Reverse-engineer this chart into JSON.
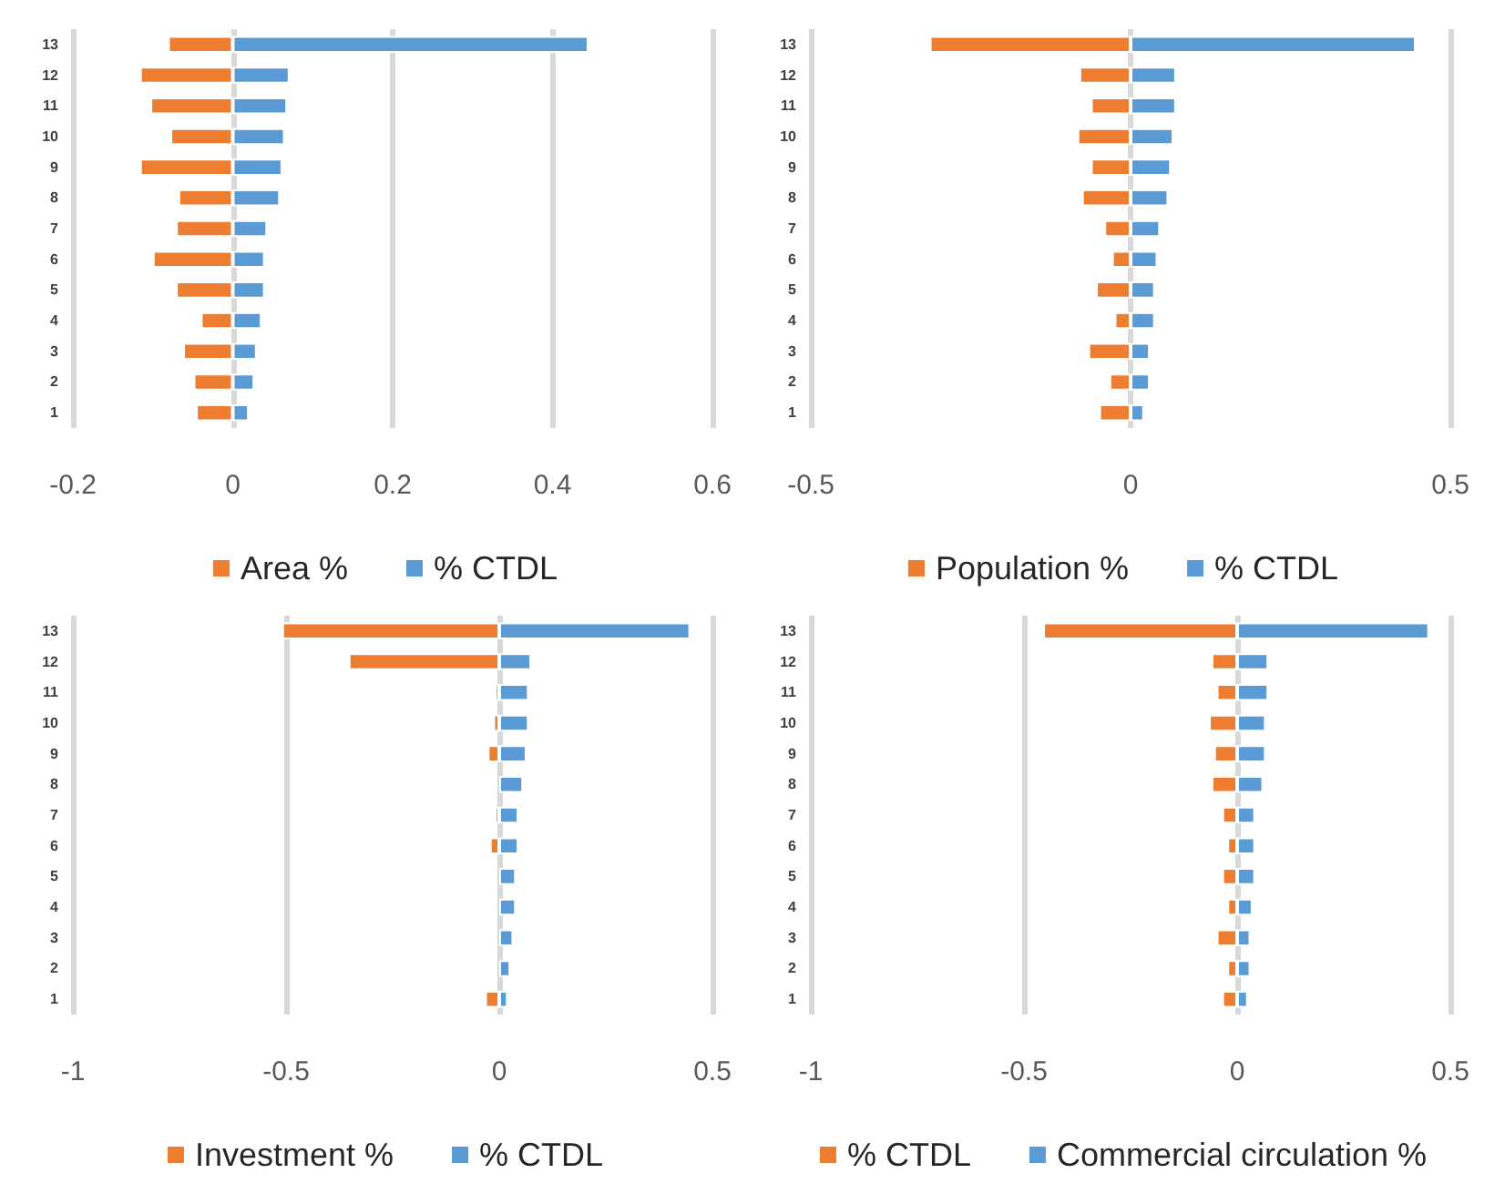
{
  "chart_data": [
    {
      "type": "bar",
      "orientation": "horizontal",
      "categories": [
        "13",
        "12",
        "11",
        "10",
        "9",
        "8",
        "7",
        "6",
        "5",
        "4",
        "3",
        "2",
        "1"
      ],
      "series": [
        {
          "name": "Area %",
          "color": "#ed7d31",
          "values": [
            -0.081,
            -0.116,
            -0.103,
            -0.078,
            -0.116,
            -0.068,
            -0.071,
            -0.1,
            -0.071,
            -0.04,
            -0.062,
            -0.049,
            -0.046
          ]
        },
        {
          "name": "% CTDL",
          "color": "#5b9bd5",
          "values": [
            0.445,
            0.071,
            0.068,
            0.065,
            0.062,
            0.059,
            0.043,
            0.04,
            0.04,
            0.036,
            0.03,
            0.027,
            0.02
          ]
        }
      ],
      "xlim": [
        -0.2,
        0.6
      ],
      "xticks": [
        -0.2,
        0,
        0.2,
        0.4,
        0.6
      ],
      "stacked": true,
      "grid": "x",
      "legend": "bottom"
    },
    {
      "type": "bar",
      "orientation": "horizontal",
      "categories": [
        "13",
        "12",
        "11",
        "10",
        "9",
        "8",
        "7",
        "6",
        "5",
        "4",
        "3",
        "2",
        "1"
      ],
      "series": [
        {
          "name": "Population %",
          "color": "#ed7d31",
          "values": [
            -0.314,
            -0.08,
            -0.062,
            -0.083,
            -0.062,
            -0.076,
            -0.041,
            -0.029,
            -0.054,
            -0.025,
            -0.066,
            -0.033,
            -0.049
          ]
        },
        {
          "name": "% CTDL",
          "color": "#5b9bd5",
          "values": [
            0.446,
            0.071,
            0.071,
            0.067,
            0.063,
            0.059,
            0.046,
            0.042,
            0.038,
            0.038,
            0.03,
            0.03,
            0.021
          ]
        }
      ],
      "xlim": [
        -0.5,
        0.5
      ],
      "xticks": [
        -0.5,
        0,
        0.5
      ],
      "stacked": true,
      "grid": "x",
      "legend": "bottom"
    },
    {
      "type": "bar",
      "orientation": "horizontal",
      "categories": [
        "13",
        "12",
        "11",
        "10",
        "9",
        "8",
        "7",
        "6",
        "5",
        "4",
        "3",
        "2",
        "1"
      ],
      "series": [
        {
          "name": "Investment %",
          "color": "#ed7d31",
          "values": [
            -0.509,
            -0.353,
            -0.01,
            -0.014,
            -0.027,
            null,
            -0.01,
            -0.022,
            null,
            null,
            null,
            null,
            -0.033
          ]
        },
        {
          "name": "% CTDL",
          "color": "#5b9bd5",
          "values": [
            0.448,
            0.075,
            0.069,
            0.069,
            0.064,
            0.056,
            0.045,
            0.045,
            0.039,
            0.039,
            0.033,
            0.026,
            0.02
          ]
        }
      ],
      "xlim": [
        -1,
        0.5
      ],
      "xticks": [
        -1,
        -0.5,
        0,
        0.5
      ],
      "stacked": true,
      "grid": "x",
      "legend": "bottom"
    },
    {
      "type": "bar",
      "orientation": "horizontal",
      "categories": [
        "13",
        "12",
        "11",
        "10",
        "9",
        "8",
        "7",
        "6",
        "5",
        "4",
        "3",
        "2",
        "1"
      ],
      "series": [
        {
          "name": "% CTDL",
          "color": "#ed7d31",
          "values": [
            -0.455,
            -0.06,
            -0.048,
            -0.066,
            -0.054,
            -0.06,
            -0.035,
            -0.023,
            -0.035,
            -0.023,
            -0.048,
            -0.023,
            -0.035
          ]
        },
        {
          "name": "Commercial circulation %",
          "color": "#5b9bd5",
          "values": [
            0.45,
            0.073,
            0.073,
            0.067,
            0.067,
            0.061,
            0.042,
            0.042,
            0.042,
            0.036,
            0.031,
            0.031,
            0.025
          ]
        }
      ],
      "xlim": [
        -1,
        0.5
      ],
      "xticks": [
        -1,
        -0.5,
        0,
        0.5
      ],
      "stacked": true,
      "grid": "x",
      "legend": "bottom"
    }
  ]
}
